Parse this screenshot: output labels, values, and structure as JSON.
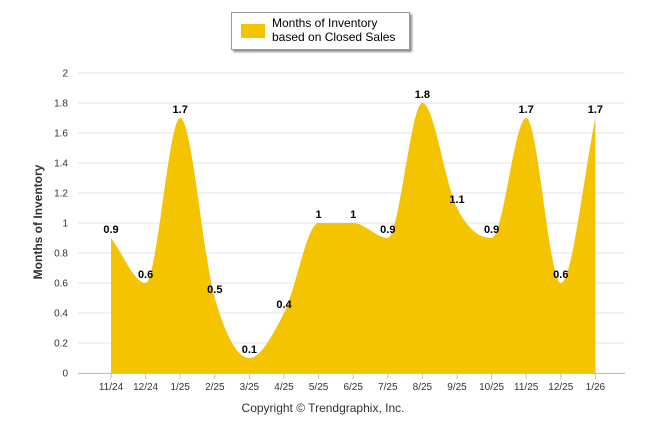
{
  "chart_data": {
    "type": "area",
    "title": "",
    "xlabel": "",
    "ylabel": "Months of Inventory",
    "ylim": [
      0,
      2
    ],
    "y_ticks": [
      "0",
      "0.2",
      "0.4",
      "0.6",
      "0.8",
      "1",
      "1.2",
      "1.4",
      "1.6",
      "1.8",
      "2"
    ],
    "y_tick_values": [
      0,
      0.2,
      0.4,
      0.6,
      0.8,
      1,
      1.2,
      1.4,
      1.6,
      1.8,
      2
    ],
    "grid": true,
    "legend_position": "top-center",
    "categories": [
      "11/24",
      "12/24",
      "1/25",
      "2/25",
      "3/25",
      "4/25",
      "5/25",
      "6/25",
      "7/25",
      "8/25",
      "9/25",
      "10/25",
      "11/25",
      "12/25",
      "1/26"
    ],
    "series": [
      {
        "name": "Months of Inventory based on Closed Sales",
        "color": "#f5c400",
        "values": [
          0.9,
          0.6,
          1.7,
          0.5,
          0.1,
          0.4,
          1,
          1,
          0.9,
          1.8,
          1.1,
          0.9,
          1.7,
          0.6,
          1.7
        ],
        "labels": [
          "0.9",
          "0.6",
          "1.7",
          "0.5",
          "0.1",
          "0.4",
          "1",
          "1",
          "0.9",
          "1.8",
          "1.1",
          "0.9",
          "1.7",
          "0.6",
          "1.7"
        ]
      }
    ]
  },
  "legend": {
    "label": "Months of Inventory based on Closed Sales"
  },
  "footer": {
    "copyright": "Copyright © Trendgraphix, Inc."
  },
  "colors": {
    "fill": "#f5c400",
    "grid": "#e6e6e6",
    "axis": "#c0c0c0"
  }
}
